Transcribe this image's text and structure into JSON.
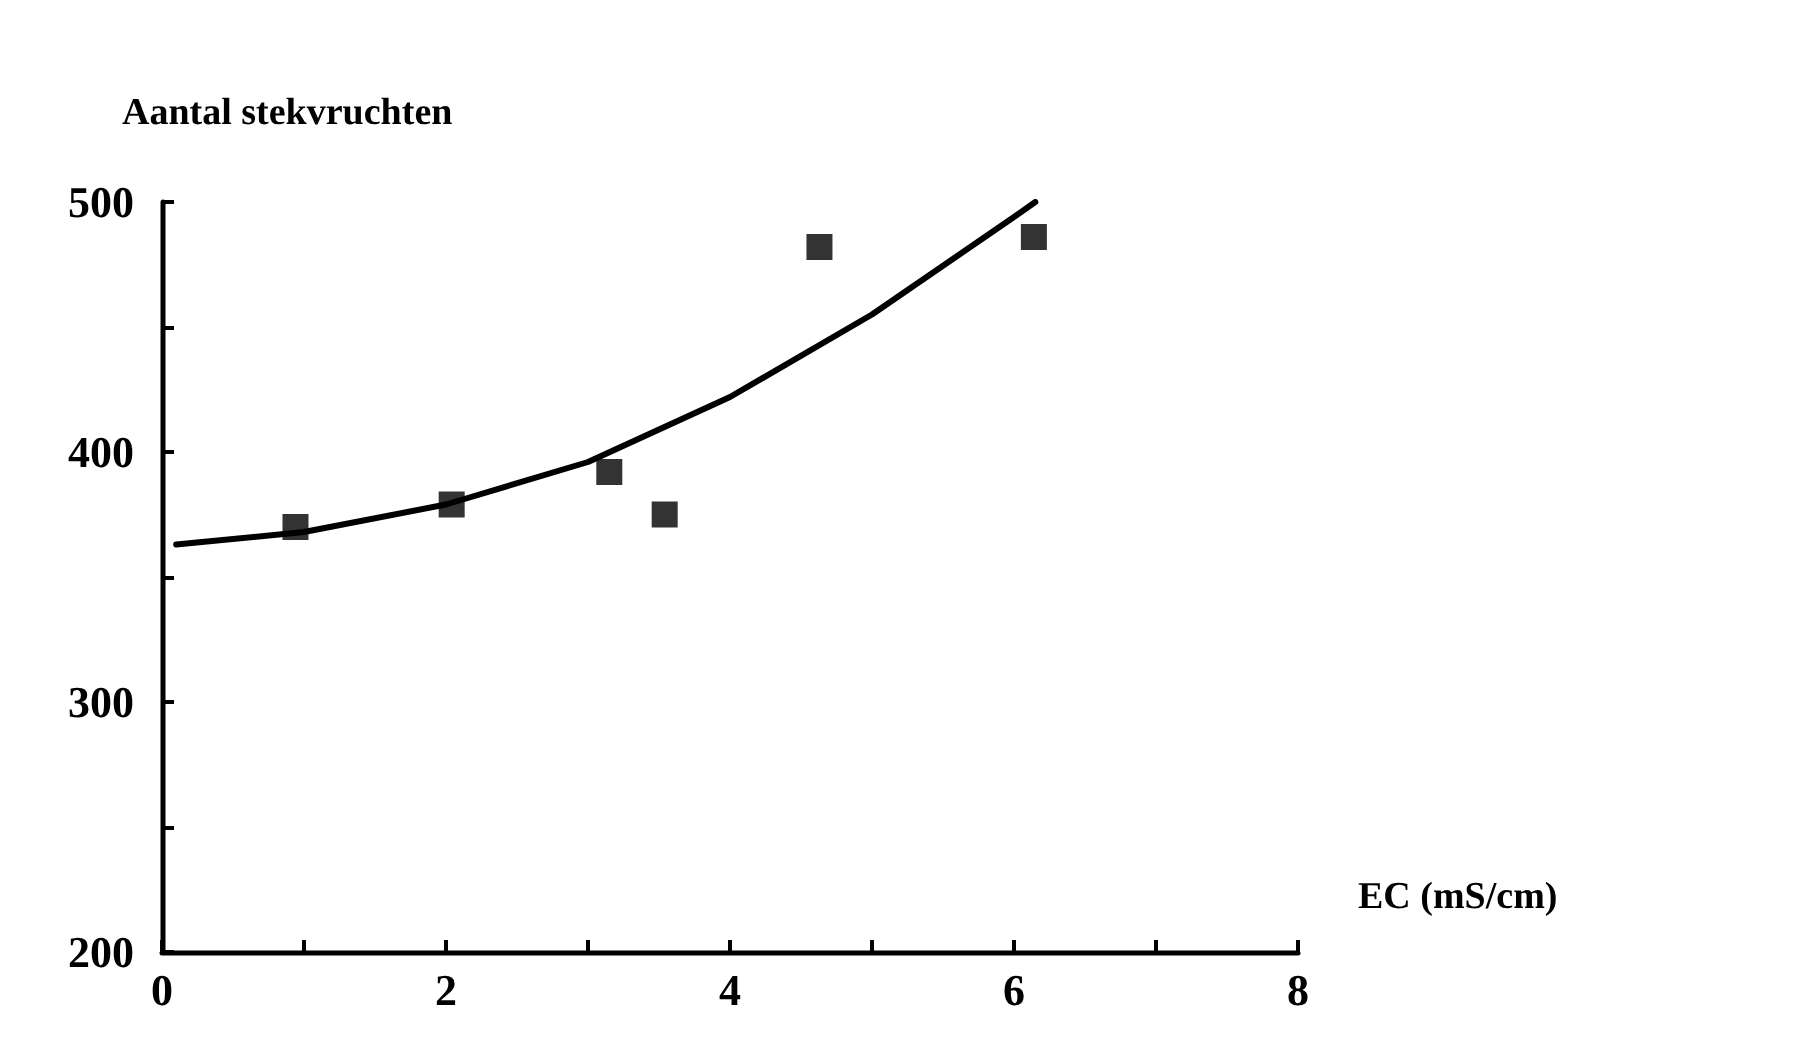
{
  "chart_data": {
    "type": "scatter",
    "xlabel": "EC (mS/cm)",
    "ylabel": "Aantal stekvruchten",
    "xlim": [
      0,
      8
    ],
    "ylim": [
      200,
      500
    ],
    "xticks": [
      0,
      {
        "value": 1,
        "label": null
      },
      2,
      {
        "value": 3,
        "label": null
      },
      4,
      {
        "value": 5,
        "label": null
      },
      6,
      {
        "value": 7,
        "label": null
      },
      8
    ],
    "yticks": [
      200,
      {
        "value": 250,
        "label": null
      },
      300,
      {
        "value": 350,
        "label": null
      },
      400,
      {
        "value": 450,
        "label": null
      },
      500
    ],
    "grid": false,
    "marker": "square",
    "series": [
      {
        "color": "#000000",
        "x": [
          0.94,
          2.04,
          3.15,
          3.54,
          4.63,
          6.14
        ],
        "values": [
          370,
          379,
          392,
          375,
          482,
          486
        ]
      },
      {
        "type": "line",
        "color": "#000000",
        "marker": "none",
        "line_style": "solid",
        "x": [
          0.1,
          1,
          2,
          3,
          4,
          5,
          6,
          6.15
        ],
        "values": [
          363,
          368,
          379,
          396,
          422,
          455,
          494,
          500
        ]
      }
    ]
  }
}
